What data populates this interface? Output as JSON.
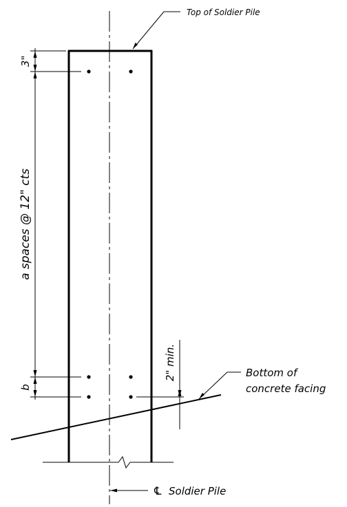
{
  "labels": {
    "top_of_pile": "Top of Soldier Pile",
    "dim_top": "3\"",
    "dim_spaces": "a spaces @ 12\" cts",
    "dim_b": "b",
    "dim_min": "2\" min.",
    "bottom_line1": "Bottom of",
    "bottom_line2": "concrete facing",
    "centerline_symbol": "℄",
    "centerline_text": "Soldier Pile"
  },
  "colors": {
    "line": "#000000",
    "background": "#ffffff"
  }
}
